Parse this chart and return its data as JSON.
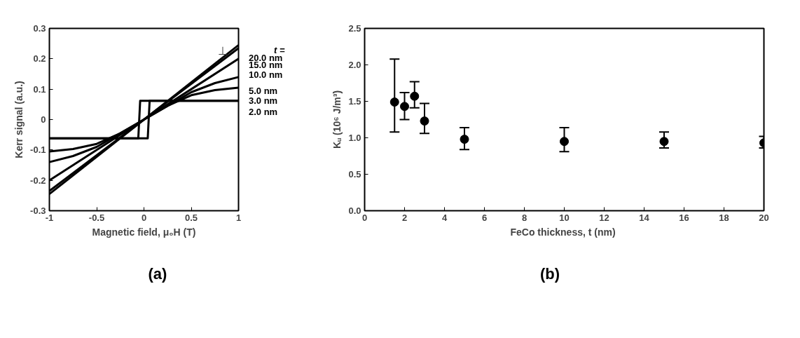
{
  "chart_data": [
    {
      "type": "line",
      "xlabel": "Magnetic field, μ₀H (T)",
      "ylabel": "Kerr signal (a.u.)",
      "legend_title": "t =",
      "xlim": [
        -1,
        1
      ],
      "ylim": [
        -0.3,
        0.3
      ],
      "xticks": [
        -1,
        -0.5,
        0,
        0.5,
        1
      ],
      "yticks": [
        -0.3,
        -0.2,
        -0.1,
        0,
        0.1,
        0.2,
        0.3
      ],
      "grid": false,
      "marker": "none",
      "line_style": "solid",
      "annotations": [
        "⊥",
        "(a)"
      ],
      "series": [
        {
          "name": "20.0 nm",
          "color": "#000000",
          "x": [
            -1,
            1
          ],
          "values": [
            -0.245,
            0.245
          ]
        },
        {
          "name": "15.0 nm",
          "color": "#000000",
          "x": [
            -1,
            1
          ],
          "values": [
            -0.235,
            0.235
          ]
        },
        {
          "name": "10.0 nm",
          "color": "#000000",
          "x": [
            -1,
            1
          ],
          "values": [
            -0.2,
            0.2
          ]
        },
        {
          "name": "5.0 nm",
          "color": "#000000",
          "x": [
            -1,
            -0.75,
            -0.5,
            -0.25,
            0,
            0.25,
            0.5,
            0.75,
            1
          ],
          "values": [
            -0.14,
            -0.12,
            -0.09,
            -0.045,
            0,
            0.045,
            0.09,
            0.12,
            0.14
          ]
        },
        {
          "name": "3.0 nm",
          "color": "#000000",
          "x": [
            -1,
            -0.75,
            -0.5,
            -0.25,
            0,
            0.25,
            0.5,
            0.75,
            1
          ],
          "values": [
            -0.105,
            -0.097,
            -0.08,
            -0.045,
            0,
            0.045,
            0.08,
            0.097,
            0.105
          ]
        },
        {
          "name": "2.0 nm",
          "color": "#000000",
          "x": [
            -1,
            0.04,
            0.06,
            1
          ],
          "values": [
            -0.062,
            -0.062,
            0.062,
            0.062
          ]
        },
        {
          "color": "#000000",
          "x": [
            -1,
            -0.06,
            -0.04,
            1
          ],
          "values": [
            -0.062,
            -0.062,
            0.062,
            0.062
          ]
        }
      ]
    },
    {
      "type": "scatter",
      "xlabel": "FeCo thickness,  t (nm)",
      "ylabel": "Kᵤ (10⁶ J/m³)",
      "xlim": [
        0,
        20
      ],
      "ylim": [
        0,
        2.5
      ],
      "xticks": [
        0,
        2,
        4,
        6,
        8,
        10,
        12,
        14,
        16,
        18,
        20
      ],
      "yticks": [
        {
          "value": 0,
          "label": "0.0"
        },
        {
          "value": 0.5,
          "label": "0.5"
        },
        {
          "value": 1,
          "label": "1.0"
        },
        {
          "value": 1.5,
          "label": "1.5"
        },
        {
          "value": 2,
          "label": "2.0"
        },
        {
          "value": 2.5,
          "label": "2.5"
        }
      ],
      "grid": false,
      "marker": "circle",
      "annotations": [
        "(b)"
      ],
      "series": [
        {
          "color": "#000000",
          "x": [
            1.5,
            2,
            2.5,
            3,
            5,
            10,
            15,
            20
          ],
          "values": [
            1.49,
            1.43,
            1.57,
            1.23,
            0.98,
            0.95,
            0.95,
            0.93
          ],
          "errors": [
            [
              1.08,
              2.08
            ],
            [
              1.25,
              1.62
            ],
            [
              1.41,
              1.77
            ],
            [
              1.06,
              1.47
            ],
            [
              0.84,
              1.14
            ],
            [
              0.81,
              1.14
            ],
            [
              0.86,
              1.08
            ],
            [
              0.86,
              1.02
            ]
          ]
        }
      ]
    }
  ]
}
